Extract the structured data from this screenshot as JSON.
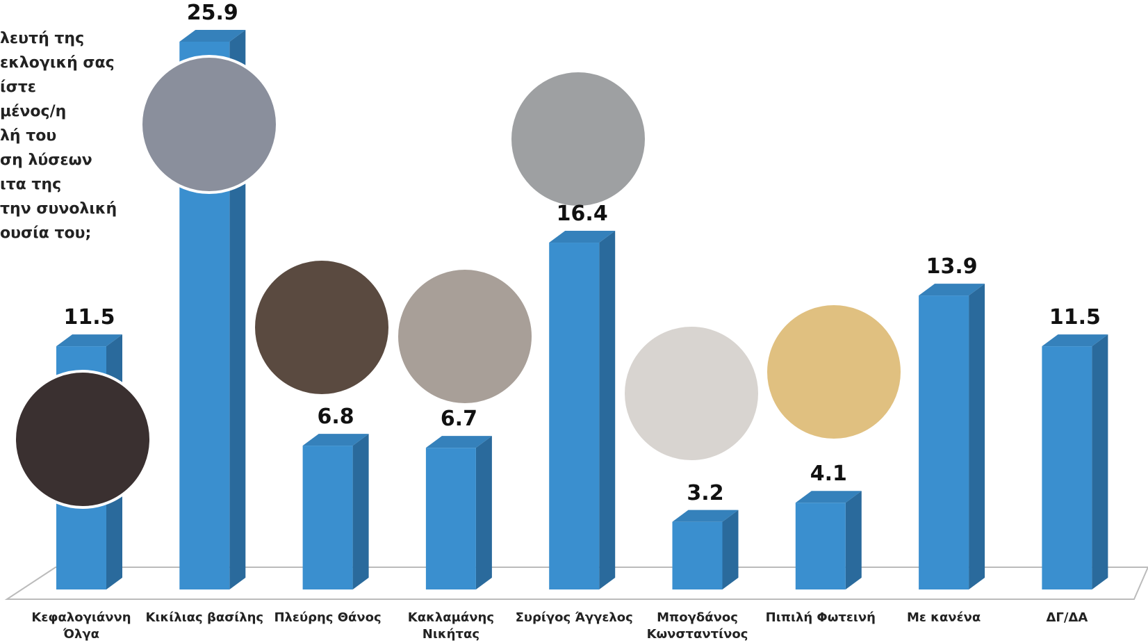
{
  "chart_data": {
    "type": "bar",
    "annotation": "λευτή της\nεκλογική σας\nίστε\nμένος/η\nλή του\nση λύσεων\nιτα της\nτην συνολική\nουσία του;",
    "categories": [
      "Κεφαλογιάννη\nΌλγα",
      "Κικίλιας βασίλης",
      "Πλεύρης Θάνος",
      "Κακλαμάνης\nΝικήτας",
      "Συρίγος Άγγελος",
      "Μπογδάνος\nΚωνσταντίνος",
      "Πιπιλή Φωτεινή",
      "Με κανένα",
      "ΔΓ/ΔΑ"
    ],
    "values": [
      11.5,
      25.9,
      6.8,
      6.7,
      16.4,
      3.2,
      4.1,
      13.9,
      11.5
    ],
    "color": "#3a8fcf",
    "side_color": "#2a6a9c",
    "top_color": "#3581bb"
  }
}
